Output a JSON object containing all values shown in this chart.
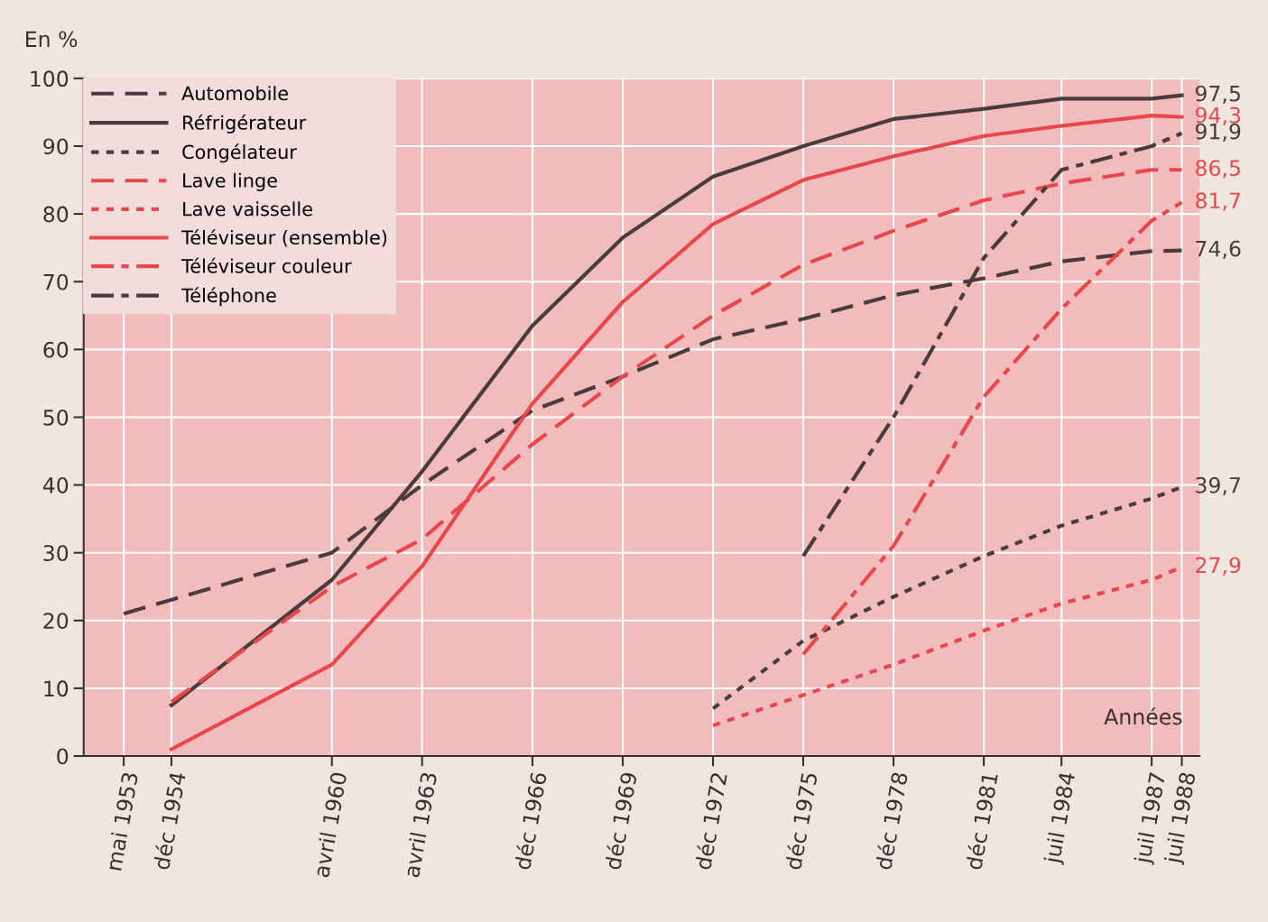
{
  "chart_data": {
    "type": "line",
    "ylabel": "En %",
    "xlabel": "Années",
    "xlim": [
      "1952-01",
      "1989-02"
    ],
    "xticks": [
      {
        "value": "1953-05",
        "label": "mai 1953"
      },
      {
        "value": "1954-12",
        "label": "déc 1954"
      },
      {
        "value": "1960-04",
        "label": "avril 1960"
      },
      {
        "value": "1963-04",
        "label": "avril 1963"
      },
      {
        "value": "1966-12",
        "label": "déc 1966"
      },
      {
        "value": "1969-12",
        "label": "déc 1969"
      },
      {
        "value": "1972-12",
        "label": "déc 1972"
      },
      {
        "value": "1975-12",
        "label": "déc 1975"
      },
      {
        "value": "1978-12",
        "label": "déc 1978"
      },
      {
        "value": "1981-12",
        "label": "déc 1981"
      },
      {
        "value": "1984-07",
        "label": "juil 1984"
      },
      {
        "value": "1987-07",
        "label": "juil 1987"
      },
      {
        "value": "1988-07",
        "label": "juil 1988"
      }
    ],
    "ylim": [
      0,
      100
    ],
    "yticks": [
      0,
      10,
      20,
      30,
      40,
      50,
      60,
      70,
      80,
      90,
      100
    ],
    "grid": true,
    "legend": "top left",
    "marker": "none",
    "series": [
      {
        "name": "Automobile",
        "color": "#4a3c3c",
        "line_style": "dashed",
        "x": [
          "1953-05",
          "1960-04",
          "1963-04",
          "1966-12",
          "1969-12",
          "1972-12",
          "1975-12",
          "1978-12",
          "1981-12",
          "1984-07",
          "1987-07",
          "1988-07"
        ],
        "values": [
          21,
          30,
          40,
          51,
          56,
          61.5,
          64.5,
          68,
          70.5,
          73,
          74.5,
          74.6
        ],
        "value_labels": [
          null,
          null,
          null,
          null,
          null,
          null,
          null,
          null,
          null,
          null,
          null,
          "74,6"
        ]
      },
      {
        "name": "Réfrigérateur",
        "color": "#4a3c3c",
        "line_style": "solid",
        "x": [
          "1954-12",
          "1960-04",
          "1963-04",
          "1966-12",
          "1969-12",
          "1972-12",
          "1975-12",
          "1978-12",
          "1981-12",
          "1984-07",
          "1987-07",
          "1988-07"
        ],
        "values": [
          7.5,
          26,
          42,
          63.5,
          76.5,
          85.5,
          90,
          94,
          95.5,
          97,
          97,
          97.5
        ],
        "value_labels": [
          null,
          null,
          null,
          null,
          null,
          null,
          null,
          null,
          null,
          null,
          null,
          "97,5"
        ]
      },
      {
        "name": "Congélateur",
        "color": "#4a3c3c",
        "line_style": "dotted",
        "x": [
          "1972-12",
          "1975-12",
          "1978-12",
          "1981-12",
          "1984-07",
          "1987-07",
          "1988-07"
        ],
        "values": [
          7,
          17,
          23.5,
          29.5,
          34,
          38,
          39.7
        ],
        "value_labels": [
          null,
          null,
          null,
          null,
          null,
          null,
          "39,7"
        ]
      },
      {
        "name": "Lave linge",
        "color": "#e8474c",
        "line_style": "dashed",
        "x": [
          "1954-12",
          "1960-04",
          "1963-04",
          "1966-12",
          "1969-12",
          "1972-12",
          "1975-12",
          "1978-12",
          "1981-12",
          "1984-07",
          "1987-07",
          "1988-07"
        ],
        "values": [
          8,
          25,
          32,
          46,
          56,
          65,
          72.5,
          77.5,
          82,
          84.5,
          86.5,
          86.5
        ],
        "value_labels": [
          null,
          null,
          null,
          null,
          null,
          null,
          null,
          null,
          null,
          null,
          null,
          "86,5"
        ]
      },
      {
        "name": "Lave vaisselle",
        "color": "#e8474c",
        "line_style": "dotted",
        "x": [
          "1972-12",
          "1975-12",
          "1978-12",
          "1981-12",
          "1984-07",
          "1987-07",
          "1988-07"
        ],
        "values": [
          4.5,
          9,
          13.5,
          18.5,
          22.5,
          26,
          27.9
        ],
        "value_labels": [
          null,
          null,
          null,
          null,
          null,
          null,
          "27,9"
        ]
      },
      {
        "name": "Téléviseur (ensemble)",
        "color": "#e8474c",
        "line_style": "solid",
        "x": [
          "1954-12",
          "1960-04",
          "1963-04",
          "1966-12",
          "1969-12",
          "1972-12",
          "1975-12",
          "1978-12",
          "1981-12",
          "1984-07",
          "1987-07",
          "1988-07"
        ],
        "values": [
          1,
          13.5,
          28,
          52,
          67,
          78.5,
          85,
          88.5,
          91.5,
          93,
          94.5,
          94.3
        ],
        "value_labels": [
          null,
          null,
          null,
          null,
          null,
          null,
          null,
          null,
          null,
          null,
          null,
          "94,3"
        ]
      },
      {
        "name": "Téléviseur couleur",
        "color": "#e8474c",
        "line_style": "dashdot",
        "x": [
          "1975-12",
          "1978-12",
          "1981-12",
          "1984-07",
          "1987-07",
          "1988-07"
        ],
        "values": [
          15,
          31,
          53,
          66,
          79,
          81.7
        ],
        "value_labels": [
          null,
          null,
          null,
          null,
          null,
          "81,7"
        ]
      },
      {
        "name": "Téléphone",
        "color": "#4a3c3c",
        "line_style": "dashdot",
        "x": [
          "1975-12",
          "1978-12",
          "1981-12",
          "1984-07",
          "1987-07",
          "1988-07"
        ],
        "values": [
          29.5,
          50,
          73.5,
          86.5,
          90,
          91.9
        ],
        "value_labels": [
          null,
          null,
          null,
          null,
          null,
          "91,9"
        ]
      }
    ]
  }
}
